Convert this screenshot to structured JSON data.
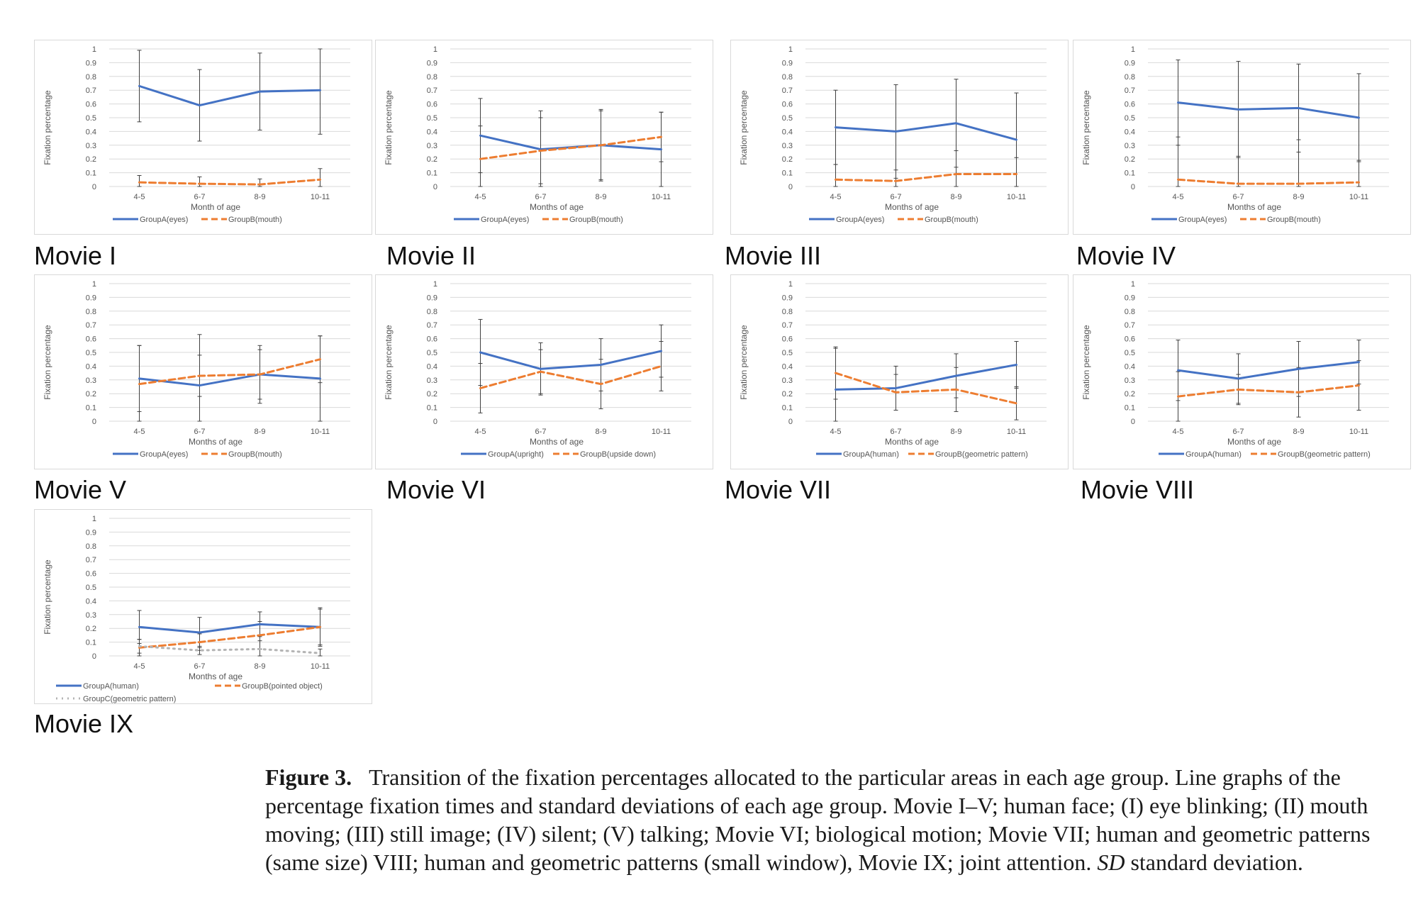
{
  "colors": {
    "groupA": "#4472c4",
    "groupB": "#ed7d31",
    "groupC": "#b4b4b4",
    "grid": "#d9d9d9",
    "errorbar": "#404040"
  },
  "common": {
    "ylabel": "Fixation percentage",
    "yticks": [
      "0",
      "0.1",
      "0.2",
      "0.3",
      "0.4",
      "0.5",
      "0.6",
      "0.7",
      "0.8",
      "0.9",
      "1"
    ],
    "categories": [
      "4-5",
      "6-7",
      "8-9",
      "10-11"
    ]
  },
  "caption": {
    "label": "Figure 3.",
    "text": "Transition of the fixation percentages allocated to the particular areas in each age group. Line graphs of the percentage fixation times and standard deviations of each age group. Movie I–V; human face; (I) eye blinking; (II) mouth moving; (III) still image; (IV) silent; (V) talking; Movie VI; biological motion; Movie VII; human and geometric patterns (same size) VIII; human and geometric patterns (small window), Movie IX; joint attention.",
    "abbr": "SD",
    "abbr_text": "standard deviation."
  },
  "chart_data": [
    {
      "title": "Movie I",
      "type": "line",
      "categories": [
        "4-5",
        "6-7",
        "8-9",
        "10-11"
      ],
      "xlabel": "Month of age",
      "ylabel": "Fixation percentage",
      "ylim": [
        0,
        1
      ],
      "grid": true,
      "legend": "bottom",
      "series": [
        {
          "name": "GroupA(eyes)",
          "values": [
            0.73,
            0.59,
            0.69,
            0.7
          ],
          "sd": [
            0.26,
            0.26,
            0.28,
            0.32
          ]
        },
        {
          "name": "GroupB(mouth)",
          "values": [
            0.03,
            0.02,
            0.015,
            0.05
          ],
          "sd": [
            0.05,
            0.05,
            0.04,
            0.08
          ]
        }
      ]
    },
    {
      "title": "Movie II",
      "type": "line",
      "categories": [
        "4-5",
        "6-7",
        "8-9",
        "10-11"
      ],
      "xlabel": "Months of age",
      "ylabel": "Fixation percentage",
      "ylim": [
        0,
        1
      ],
      "grid": true,
      "legend": "bottom",
      "series": [
        {
          "name": "GroupA(eyes)",
          "values": [
            0.37,
            0.27,
            0.3,
            0.27
          ],
          "sd": [
            0.27,
            0.28,
            0.26,
            0.27
          ]
        },
        {
          "name": "GroupB(mouth)",
          "values": [
            0.2,
            0.26,
            0.3,
            0.36
          ],
          "sd": [
            0.24,
            0.24,
            0.25,
            0.18
          ]
        }
      ]
    },
    {
      "title": "Movie III",
      "type": "line",
      "categories": [
        "4-5",
        "6-7",
        "8-9",
        "10-11"
      ],
      "xlabel": "Months of age",
      "ylabel": "Fixation percentage",
      "ylim": [
        0,
        1
      ],
      "grid": true,
      "legend": "bottom",
      "series": [
        {
          "name": "GroupA(eyes)",
          "values": [
            0.43,
            0.4,
            0.46,
            0.34
          ],
          "sd": [
            0.27,
            0.34,
            0.32,
            0.34
          ]
        },
        {
          "name": "GroupB(mouth)",
          "values": [
            0.05,
            0.04,
            0.09,
            0.09
          ],
          "sd": [
            0.11,
            0.08,
            0.17,
            0.12
          ]
        }
      ]
    },
    {
      "title": "Movie IV",
      "type": "line",
      "categories": [
        "4-5",
        "6-7",
        "8-9",
        "10-11"
      ],
      "xlabel": "Months of age",
      "ylabel": "Fixation percentage",
      "ylim": [
        0,
        1
      ],
      "grid": true,
      "legend": "bottom",
      "series": [
        {
          "name": "GroupA(eyes)",
          "values": [
            0.61,
            0.56,
            0.57,
            0.5
          ],
          "sd": [
            0.31,
            0.35,
            0.32,
            0.32
          ]
        },
        {
          "name": "GroupB(mouth)",
          "values": [
            0.05,
            0.02,
            0.02,
            0.03
          ],
          "sd": [
            0.31,
            0.2,
            0.32,
            0.16
          ]
        }
      ]
    },
    {
      "title": "Movie V",
      "type": "line",
      "categories": [
        "4-5",
        "6-7",
        "8-9",
        "10-11"
      ],
      "xlabel": "Months of age",
      "ylabel": "Fixation percentage",
      "ylim": [
        0,
        1
      ],
      "grid": true,
      "legend": "bottom",
      "series": [
        {
          "name": "GroupA(eyes)",
          "values": [
            0.31,
            0.26,
            0.34,
            0.31
          ],
          "sd": [
            0.24,
            0.37,
            0.21,
            0.31
          ]
        },
        {
          "name": "GroupB(mouth)",
          "values": [
            0.27,
            0.33,
            0.34,
            0.45
          ],
          "sd": [
            0.28,
            0.15,
            0.18,
            0.17
          ]
        }
      ]
    },
    {
      "title": "Movie VI",
      "type": "line",
      "categories": [
        "4-5",
        "6-7",
        "8-9",
        "10-11"
      ],
      "xlabel": "Months of age",
      "ylabel": "Fixation percentage",
      "ylim": [
        0,
        1
      ],
      "grid": true,
      "legend": "bottom",
      "series": [
        {
          "name": "GroupA(upright)",
          "values": [
            0.5,
            0.38,
            0.41,
            0.51
          ],
          "sd": [
            0.24,
            0.19,
            0.19,
            0.19
          ]
        },
        {
          "name": "GroupB(upside down)",
          "values": [
            0.24,
            0.36,
            0.27,
            0.4
          ],
          "sd": [
            0.18,
            0.16,
            0.18,
            0.18
          ]
        }
      ]
    },
    {
      "title": "Movie VII",
      "type": "line",
      "categories": [
        "4-5",
        "6-7",
        "8-9",
        "10-11"
      ],
      "xlabel": "Months of age",
      "ylabel": "Fixation percentage",
      "ylim": [
        0,
        1
      ],
      "grid": true,
      "legend": "bottom",
      "series": [
        {
          "name": "GroupA(human)",
          "values": [
            0.23,
            0.24,
            0.33,
            0.41
          ],
          "sd": [
            0.3,
            0.16,
            0.16,
            0.17
          ]
        },
        {
          "name": "GroupB(geometric pattern)",
          "values": [
            0.35,
            0.21,
            0.23,
            0.13
          ],
          "sd": [
            0.19,
            0.13,
            0.16,
            0.12
          ]
        }
      ]
    },
    {
      "title": "Movie VIII",
      "type": "line",
      "categories": [
        "4-5",
        "6-7",
        "8-9",
        "10-11"
      ],
      "xlabel": "Months of age",
      "ylabel": "Fixation percentage",
      "ylim": [
        0,
        1
      ],
      "grid": true,
      "legend": "bottom",
      "series": [
        {
          "name": "GroupA(human)",
          "values": [
            0.37,
            0.31,
            0.38,
            0.43
          ],
          "sd": [
            0.22,
            0.18,
            0.2,
            0.16
          ]
        },
        {
          "name": "GroupB(geometric pattern)",
          "values": [
            0.18,
            0.23,
            0.21,
            0.26
          ],
          "sd": [
            0.18,
            0.11,
            0.18,
            0.18
          ]
        }
      ]
    },
    {
      "title": "Movie IX",
      "type": "line",
      "categories": [
        "4-5",
        "6-7",
        "8-9",
        "10-11"
      ],
      "xlabel": "Months of age",
      "ylabel": "Fixation percentage",
      "ylim": [
        0,
        1
      ],
      "grid": true,
      "legend": "bottom",
      "series": [
        {
          "name": "GroupA(human)",
          "values": [
            0.21,
            0.17,
            0.23,
            0.21
          ],
          "sd": [
            0.12,
            0.11,
            0.09,
            0.14
          ]
        },
        {
          "name": "GroupB(pointed object)",
          "values": [
            0.06,
            0.1,
            0.15,
            0.21
          ],
          "sd": [
            0.06,
            0.06,
            0.1,
            0.13
          ]
        },
        {
          "name": "GroupC(geometric pattern)",
          "values": [
            0.07,
            0.04,
            0.05,
            0.02
          ],
          "sd": [
            0.05,
            0.03,
            0.06,
            0.03
          ]
        }
      ]
    }
  ]
}
